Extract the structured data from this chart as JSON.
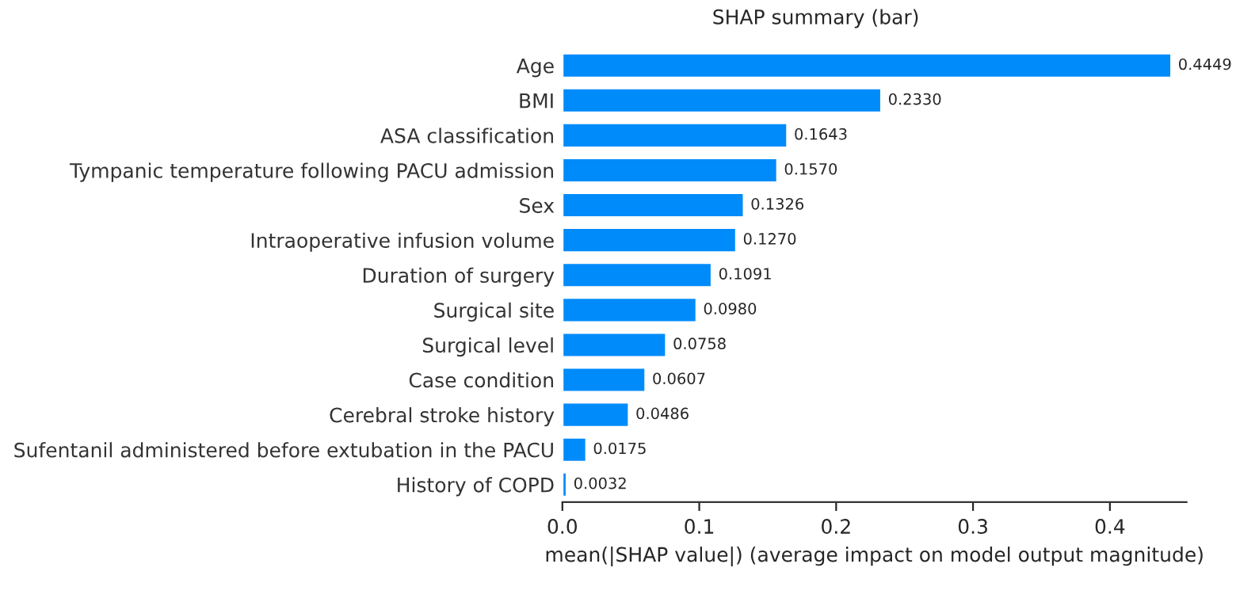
{
  "chart_data": {
    "type": "bar",
    "orientation": "horizontal",
    "title": "SHAP summary (bar)",
    "xlabel": "mean(|SHAP value|) (average impact on model output magnitude)",
    "categories": [
      "Age",
      "BMI",
      "ASA classification",
      "Tympanic temperature following PACU admission",
      "Sex",
      "Intraoperative infusion volume",
      "Duration of surgery",
      "Surgical site",
      "Surgical level",
      "Case condition",
      "Cerebral stroke history",
      "Sufentanil administered before extubation in the PACU",
      "History of COPD"
    ],
    "values": [
      0.4449,
      0.233,
      0.1643,
      0.157,
      0.1326,
      0.127,
      0.1091,
      0.098,
      0.0758,
      0.0607,
      0.0486,
      0.0175,
      0.0032
    ],
    "color": "#008bfb",
    "xlim": [
      0,
      0.456
    ],
    "xticks": [
      {
        "value": 0,
        "label": "0.0"
      },
      0.1,
      0.2,
      0.3,
      0.4
    ],
    "value_labels": [
      "0.4449",
      "0.2330",
      "0.1643",
      "0.1570",
      "0.1326",
      "0.1270",
      "0.1091",
      "0.0980",
      "0.0758",
      "0.0607",
      "0.0486",
      "0.0175",
      "0.0032"
    ],
    "grid": false,
    "legend": false
  }
}
